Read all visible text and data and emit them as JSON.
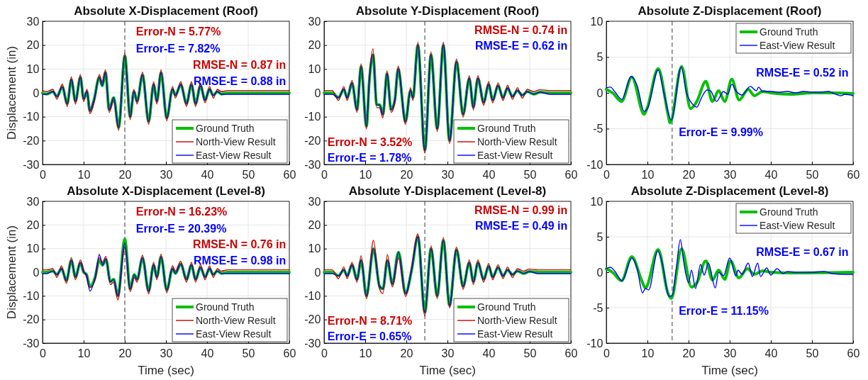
{
  "chart_data": [
    {
      "type": "line",
      "title": "Absolute X-Displacement (Roof)",
      "ylabel": "Displacement (in)",
      "xlim": [
        0,
        60
      ],
      "xticks": [
        0,
        10,
        20,
        30,
        40,
        50,
        60
      ],
      "ylim": [
        -30,
        30
      ],
      "yticks": [
        -30,
        -20,
        -10,
        0,
        10,
        20,
        30
      ],
      "grid": true,
      "legend": "bottom right",
      "x": [
        0,
        1,
        2.5,
        3.5,
        4.8,
        6,
        7,
        8,
        9.2,
        10,
        10.8,
        11.5,
        12.5,
        13.8,
        14.5,
        15.3,
        16.2,
        17.3,
        18.5,
        20,
        21.3,
        22.2,
        23,
        24.3,
        25.8,
        27,
        27.8,
        28.8,
        30.2,
        31.6,
        32.3,
        33.6,
        35,
        36.2,
        37.2,
        38.4,
        39.5,
        40.6,
        41.5,
        42.5,
        43.5,
        45,
        47,
        50,
        55,
        60
      ],
      "series": [
        {
          "name": "Ground Truth",
          "color": "#00c000",
          "values": [
            0,
            -0.5,
            0.5,
            -1.5,
            2.5,
            -4.5,
            5.5,
            -3.5,
            6.5,
            -2.5,
            0.5,
            -7.5,
            -3,
            6.5,
            3,
            8.5,
            -7,
            -2,
            -14.5,
            15.5,
            -10,
            0.5,
            -3.5,
            7.5,
            -12,
            3.5,
            -3.5,
            8.5,
            -10.5,
            1.5,
            -1,
            3.5,
            -4.5,
            3.5,
            -4.5,
            3,
            -3,
            1.5,
            -1,
            0.5,
            -0.5,
            0,
            0,
            0,
            0,
            0
          ]
        },
        {
          "name": "North-View Result",
          "color": "#cc0000",
          "values": [
            1,
            0.5,
            1.5,
            -2.7,
            3.7,
            -5.7,
            6.7,
            -4.7,
            7.7,
            -3.7,
            1.5,
            -8.7,
            -4.2,
            7.7,
            4.2,
            9.7,
            -8.2,
            -3.2,
            -15.7,
            16.7,
            -11.2,
            1.5,
            -4.7,
            8.7,
            -13.2,
            4.7,
            -4.7,
            9.7,
            -11.7,
            2.7,
            -2.2,
            4.7,
            -5.7,
            4.7,
            -5.7,
            4.2,
            -4.2,
            2.7,
            -2.2,
            1.5,
            0.5,
            1,
            1,
            1,
            1,
            1
          ]
        },
        {
          "name": "East-View Result",
          "color": "#0000ff",
          "values": [
            -0.6,
            -0.5,
            0.5,
            -1.5,
            2.5,
            -4.5,
            5.5,
            -3.5,
            6.5,
            -2.5,
            0.5,
            -7.5,
            -3,
            6.5,
            3,
            8.5,
            -7,
            -2,
            -14.5,
            15.5,
            -10,
            0.5,
            -3.5,
            7.5,
            -12,
            3.5,
            -3.5,
            8.5,
            -10.5,
            1.5,
            -1,
            3.5,
            -4.5,
            3.5,
            -4.5,
            3,
            -3,
            1.5,
            -1,
            0.5,
            -0.5,
            -0.6,
            -0.6,
            -0.6,
            -0.6,
            -0.6
          ]
        }
      ],
      "ref_lines": [
        {
          "axis": "x",
          "value": 20,
          "color": "#999999",
          "line_style": "dashed"
        }
      ],
      "annotations": [
        "Error-N = 5.77%",
        "Error-E = 7.82%",
        "RMSE-N = 0.87 in",
        "RMSE-E = 0.88 in"
      ]
    },
    {
      "type": "line",
      "title": "Absolute Y-Displacement (Roof)",
      "xlim": [
        0,
        60
      ],
      "xticks": [
        0,
        10,
        20,
        30,
        40,
        50,
        60
      ],
      "ylim": [
        -30,
        30
      ],
      "yticks": [
        -30,
        -20,
        -10,
        0,
        10,
        20,
        30
      ],
      "grid": true,
      "legend": "bottom right",
      "x": [
        0,
        2,
        3.5,
        4.8,
        5.6,
        6.8,
        8,
        9,
        10.3,
        11,
        11.9,
        12.8,
        13.5,
        14.3,
        15.3,
        16.3,
        17.2,
        18,
        19.8,
        21,
        21.6,
        22.8,
        24.5,
        26,
        27.5,
        29,
        30.5,
        32.2,
        33.8,
        35.3,
        36.3,
        37.4,
        38.8,
        40,
        41,
        42.3,
        43.5,
        44.6,
        45.8,
        47,
        48.2,
        49.4,
        51,
        52.5,
        55,
        60
      ],
      "series": [
        {
          "name": "Ground Truth",
          "color": "#00c000",
          "values": [
            0,
            0,
            -2,
            1.5,
            -2,
            4,
            -7,
            11,
            -14,
            5,
            16,
            -5,
            -5,
            -9,
            8,
            -7,
            -3,
            10,
            -12,
            1,
            -2,
            20,
            -24,
            16,
            -15,
            20,
            -20,
            13,
            -9,
            6,
            -6,
            6,
            -4,
            3.5,
            -3,
            3,
            -2,
            2,
            -1.5,
            1,
            -1,
            0.5,
            -0.5,
            0.3,
            0,
            0
          ]
        },
        {
          "name": "North-View Result",
          "color": "#cc0000",
          "values": [
            1,
            1,
            -3.2,
            2.7,
            -3.2,
            5.2,
            -8.2,
            12.2,
            -15.2,
            6.2,
            18.5,
            -6.2,
            -6.2,
            -10.5,
            9.2,
            -8.2,
            -4.2,
            11.2,
            -13.2,
            2.2,
            -3.2,
            21.2,
            -25.2,
            17.2,
            -16.2,
            21.2,
            -21.2,
            14.2,
            -10.2,
            7.2,
            -7.2,
            7.2,
            -5.2,
            4.7,
            -4.2,
            4.2,
            -3.2,
            3.2,
            -2.7,
            2.2,
            -2.2,
            1.5,
            0.5,
            1.3,
            1,
            1
          ]
        },
        {
          "name": "East-View Result",
          "color": "#0000ff",
          "values": [
            -0.6,
            -0.6,
            -2,
            1.5,
            -2,
            4,
            -7,
            11,
            -14,
            5,
            16,
            -5,
            -5,
            -9,
            8,
            -7,
            -3,
            10,
            -12,
            1,
            -2,
            20,
            -24,
            16,
            -15,
            20,
            -20,
            13,
            -9,
            6,
            -6,
            6,
            -4,
            3.5,
            -3,
            3,
            -2,
            2,
            -1.5,
            1,
            -1,
            0.5,
            -0.5,
            0.3,
            -0.6,
            -0.6
          ]
        }
      ],
      "ref_lines": [
        {
          "axis": "x",
          "value": 24.5,
          "color": "#999999",
          "line_style": "dashed"
        }
      ],
      "annotations": [
        "RMSE-N = 0.74 in",
        "RMSE-E = 0.62 in",
        "Error-N = 3.52%",
        "Error-E = 1.78%"
      ]
    },
    {
      "type": "line",
      "title": "Absolute Z-Displacement (Roof)",
      "xlim": [
        0,
        60
      ],
      "xticks": [
        0,
        10,
        20,
        30,
        40,
        50,
        60
      ],
      "ylim": [
        -10,
        10
      ],
      "yticks": [
        -10,
        -5,
        0,
        5,
        10
      ],
      "grid": true,
      "legend": "top right",
      "series": [
        {
          "name": "Ground Truth",
          "color": "#00c000",
          "x": [
            0,
            1.5,
            3.7,
            6.2,
            9.2,
            10,
            12.6,
            15,
            15.5,
            18.3,
            20.5,
            22,
            24.2,
            25.8,
            27.3,
            28.8,
            30.5,
            32.3,
            34.5,
            36,
            38,
            40,
            45,
            50,
            55,
            60
          ],
          "values": [
            0.5,
            0,
            -1.2,
            2.2,
            -3,
            -2,
            3.4,
            -3,
            -4.2,
            3.7,
            -2.2,
            -1.2,
            1.6,
            -1.2,
            0.3,
            -1.2,
            1.9,
            -1,
            0.5,
            -0.4,
            0.2,
            0,
            -0.2,
            0,
            0,
            -0.1
          ]
        },
        {
          "name": "East-View Result",
          "color": "#0000ff",
          "x": [
            0,
            1,
            2,
            3.8,
            6,
            7.5,
            9.2,
            10,
            12.6,
            14,
            15.8,
            18.2,
            19.5,
            21,
            22,
            23.2,
            24.5,
            25.3,
            26.8,
            28.5,
            29.5,
            30.5,
            31.5,
            33,
            35,
            36.5,
            37,
            38,
            40,
            42,
            44,
            46,
            48,
            50,
            52,
            54,
            55,
            57,
            58,
            60
          ],
          "values": [
            0.7,
            0.8,
            0.2,
            -0.9,
            2.3,
            1,
            -2.6,
            -2.2,
            3.2,
            0,
            -3.8,
            3.6,
            0,
            -1.6,
            -2,
            -0.6,
            0.4,
            0.3,
            -1.2,
            0.2,
            -0.2,
            1.2,
            0.3,
            -0.3,
            0.9,
            0.3,
            0.8,
            0.2,
            0.2,
            0.1,
            0.2,
            0,
            0.2,
            0.1,
            0.1,
            0.2,
            0,
            -0.4,
            -0.2,
            -0.4
          ]
        }
      ],
      "ref_lines": [
        {
          "axis": "x",
          "value": 16,
          "color": "#999999",
          "line_style": "dashed"
        }
      ],
      "annotations": [
        "RMSE-E = 0.52 in",
        "Error-E = 9.99%"
      ]
    },
    {
      "type": "line",
      "title": "Absolute X-Displacement (Level-8)",
      "xlabel": "Time (sec)",
      "ylabel": "Displacement (in)",
      "xlim": [
        0,
        60
      ],
      "xticks": [
        0,
        10,
        20,
        30,
        40,
        50,
        60
      ],
      "ylim": [
        -30,
        30
      ],
      "yticks": [
        -30,
        -20,
        -10,
        0,
        10,
        20,
        30
      ],
      "grid": true,
      "legend": "bottom right",
      "x": [
        0,
        1,
        2.5,
        3.5,
        4.6,
        5.8,
        7,
        8,
        9.2,
        10,
        10.7,
        11.5,
        12.8,
        13.8,
        14.6,
        15.4,
        16.5,
        17.3,
        18.3,
        20,
        21.3,
        22.3,
        23,
        24.3,
        25.8,
        27,
        27.8,
        28.8,
        30.2,
        31.6,
        32.3,
        33.6,
        35,
        36.2,
        37.2,
        38.4,
        39.5,
        40.6,
        41.5,
        42.5,
        43.5,
        45,
        50,
        55,
        60
      ],
      "series": [
        {
          "name": "Ground Truth",
          "color": "#00c000",
          "values": [
            0,
            0,
            0.5,
            -1,
            1.5,
            -3.5,
            5,
            -2,
            4,
            0,
            -1,
            -6,
            -2,
            5,
            3,
            5.5,
            -4,
            -3,
            -10,
            14,
            -7,
            -1,
            -3,
            6,
            -8,
            3,
            -2,
            6.5,
            -7.5,
            1.5,
            -0.5,
            3.5,
            -3,
            3,
            -3,
            2,
            -2,
            1.5,
            -1,
            0.5,
            -0.5,
            0,
            0,
            0,
            0
          ]
        },
        {
          "name": "North-View Result",
          "color": "#cc0000",
          "values": [
            1,
            1,
            1.5,
            -2.2,
            2.7,
            -4.7,
            6.2,
            -3.2,
            5.2,
            1,
            -2.2,
            -6.5,
            -3.2,
            6.2,
            4.2,
            6.7,
            -5.2,
            -4.2,
            -11.7,
            10.5,
            -8.2,
            -2.2,
            -4.2,
            7.2,
            -9.2,
            4.2,
            -3.2,
            7.7,
            -8.7,
            2.7,
            0.5,
            4.7,
            -4.2,
            4.2,
            -4.2,
            3.2,
            -3.2,
            2.7,
            -2.2,
            1.5,
            0.5,
            1,
            1,
            1,
            1
          ]
        },
        {
          "name": "East-View Result",
          "color": "#0000ff",
          "values": [
            -0.6,
            -0.6,
            0.5,
            -1,
            1.5,
            -3.5,
            5,
            -2,
            4,
            0,
            -1,
            -8,
            -2,
            7.5,
            3,
            5.5,
            -4,
            -3,
            -10,
            12.5,
            -7,
            -1,
            -3,
            6,
            -8,
            3,
            -2,
            6.5,
            -7.5,
            1.5,
            -0.5,
            3.5,
            -3,
            3,
            -3,
            2,
            -2,
            1.5,
            -1,
            0.5,
            -0.5,
            -0.6,
            -0.6,
            -0.6,
            -0.6
          ]
        }
      ],
      "ref_lines": [
        {
          "axis": "x",
          "value": 20,
          "color": "#999999",
          "line_style": "dashed"
        }
      ],
      "annotations": [
        "Error-N = 16.23%",
        "Error-E = 20.39%",
        "RMSE-N = 0.76 in",
        "RMSE-E = 0.98 in"
      ]
    },
    {
      "type": "line",
      "title": "Absolute Y-Displacement (Level-8)",
      "xlabel": "Time (sec)",
      "xlim": [
        0,
        60
      ],
      "xticks": [
        0,
        10,
        20,
        30,
        40,
        50,
        60
      ],
      "ylim": [
        -30,
        30
      ],
      "yticks": [
        -30,
        -20,
        -10,
        0,
        10,
        20,
        30
      ],
      "grid": true,
      "legend": "bottom right",
      "x": [
        0,
        2,
        3.5,
        4.8,
        5.6,
        6.8,
        8,
        9,
        10.3,
        12,
        13.5,
        14.3,
        15.4,
        16.6,
        18.1,
        19.8,
        21.3,
        22.8,
        24.5,
        26,
        27.5,
        29,
        30.5,
        32.2,
        33.8,
        35.3,
        36.3,
        37.4,
        38.8,
        40,
        41,
        42.3,
        43.5,
        44.6,
        45.8,
        47,
        48.5,
        50,
        52,
        55,
        60
      ],
      "series": [
        {
          "name": "Ground Truth",
          "color": "#00c000",
          "values": [
            0,
            0,
            -1.5,
            1,
            -1.5,
            3,
            -3,
            5,
            -10,
            10,
            -6,
            -7,
            5,
            -5,
            8.5,
            -9,
            1,
            15,
            -17,
            10,
            -10,
            13.5,
            -14,
            9.5,
            -6,
            4,
            -4,
            4,
            -3,
            2.5,
            -2,
            2,
            -1.5,
            1,
            -1,
            0.5,
            -0.5,
            0.3,
            0,
            0,
            0
          ]
        },
        {
          "name": "North-View Result",
          "color": "#cc0000",
          "values": [
            1,
            1,
            -2.7,
            2.2,
            -2.7,
            4.2,
            -4.2,
            7,
            -11.2,
            13.5,
            -7.2,
            -9,
            7.5,
            -6.2,
            6,
            -10.2,
            2.2,
            16.2,
            -18.5,
            11.2,
            -11.2,
            14.7,
            -15.2,
            10.7,
            -7.2,
            5.2,
            -5.2,
            5.2,
            -4.2,
            3.7,
            -3.2,
            3.2,
            -2.7,
            2.2,
            -2.2,
            1.5,
            0.5,
            1.3,
            1,
            1,
            1
          ]
        },
        {
          "name": "East-View Result",
          "color": "#0000ff",
          "values": [
            -0.6,
            -0.6,
            -1.5,
            1,
            -1.5,
            3,
            -3,
            5,
            -10,
            10,
            -6,
            -7,
            5,
            -5,
            8.5,
            -9,
            1,
            15,
            -17,
            10,
            -10,
            13.5,
            -14,
            9.5,
            -6,
            4,
            -4,
            4,
            -3,
            2.5,
            -2,
            2,
            -1.5,
            1,
            -1,
            0.5,
            -0.5,
            0.3,
            -0.6,
            -0.6,
            -0.6
          ]
        }
      ],
      "ref_lines": [
        {
          "axis": "x",
          "value": 24.5,
          "color": "#999999",
          "line_style": "dashed"
        }
      ],
      "annotations": [
        "RMSE-N = 0.99 in",
        "RMSE-E = 0.49 in",
        "Error-N = 8.71%",
        "Error-E = 0.65%"
      ]
    },
    {
      "type": "line",
      "title": "Absolute Z-Displacement (Level-8)",
      "xlabel": "Time (sec)",
      "xlim": [
        0,
        60
      ],
      "xticks": [
        0,
        10,
        20,
        30,
        40,
        50,
        60
      ],
      "ylim": [
        -10,
        10
      ],
      "yticks": [
        -10,
        -5,
        0,
        5,
        10
      ],
      "grid": true,
      "legend": "top right",
      "series": [
        {
          "name": "Ground Truth",
          "color": "#00c000",
          "x": [
            0,
            1.5,
            3.7,
            6.2,
            8.5,
            9.5,
            12.6,
            15,
            15.8,
            18.3,
            20.7,
            22,
            24.2,
            25.8,
            27.3,
            28.8,
            30.2,
            32.2,
            34.3,
            36,
            38,
            40,
            45,
            60
          ],
          "values": [
            0.5,
            0,
            -1.2,
            2.2,
            -1,
            -2.2,
            3.2,
            -3,
            -3.7,
            3.3,
            -2.1,
            -1.5,
            1.6,
            -1.1,
            0.3,
            -1,
            1.6,
            -0.8,
            0.5,
            -0.3,
            0.2,
            0,
            -0.1,
            0
          ]
        },
        {
          "name": "East-View Result",
          "color": "#0000ff",
          "x": [
            0,
            1,
            2,
            3.8,
            6.2,
            7.5,
            8.8,
            9.5,
            10.3,
            12.5,
            13.5,
            15.3,
            16,
            17,
            18,
            18.8,
            20,
            20.7,
            21.7,
            22.9,
            23.8,
            24.8,
            26.5,
            27.3,
            28.5,
            30,
            31.5,
            32,
            33,
            34.5,
            35.5,
            36.8,
            37.5,
            39,
            40,
            41.5,
            43,
            44,
            46,
            50,
            53,
            55,
            58,
            60
          ],
          "values": [
            0.5,
            0.7,
            0.2,
            -1.2,
            2,
            0.5,
            -2.9,
            -2.3,
            -2.5,
            3,
            1.5,
            -3.4,
            -3.3,
            0.5,
            4.6,
            1.5,
            -1.5,
            0.3,
            -2.3,
            1.1,
            -0.4,
            1.3,
            -2.2,
            0,
            -0.5,
            2,
            -0.5,
            0.3,
            -0.3,
            1.3,
            -0.6,
            1.3,
            -0.6,
            0.6,
            -0.4,
            0.5,
            -0.2,
            0.1,
            0,
            0,
            0.1,
            -0.2,
            -0.3,
            -0.3
          ]
        }
      ],
      "ref_lines": [
        {
          "axis": "x",
          "value": 16,
          "color": "#999999",
          "line_style": "dashed"
        }
      ],
      "annotations": [
        "RMSE-E = 0.67 in",
        "Error-E = 11.15%"
      ]
    }
  ]
}
